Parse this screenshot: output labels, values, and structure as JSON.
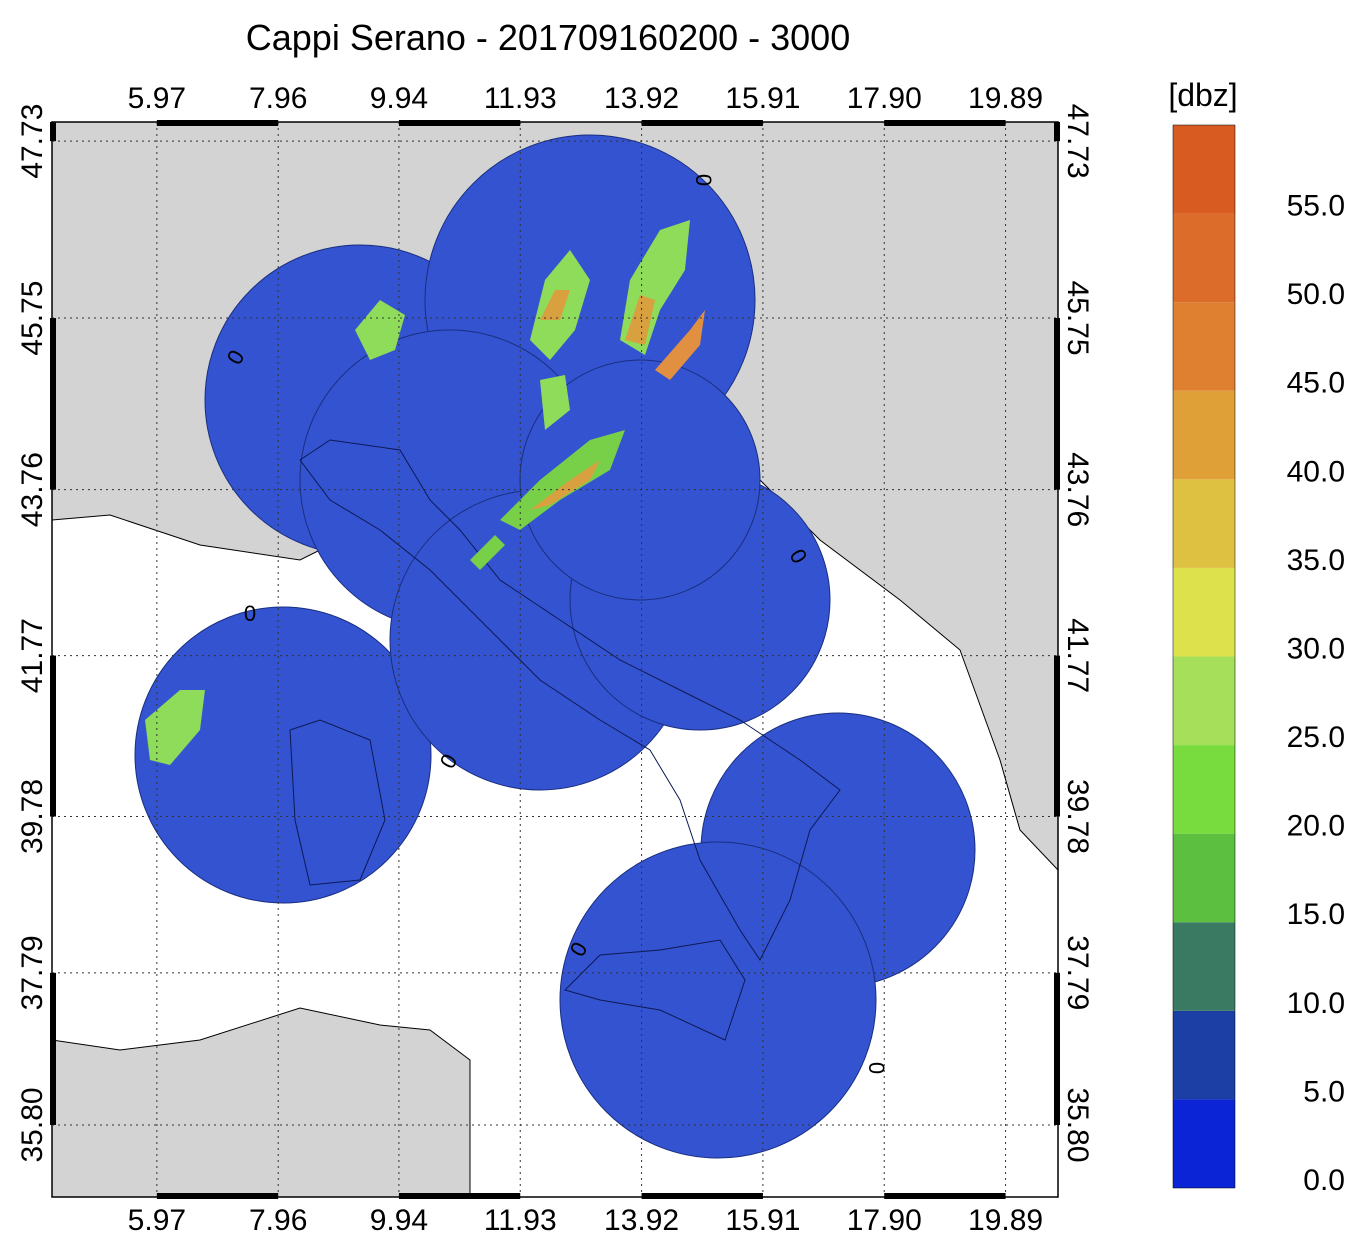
{
  "chart_data": {
    "type": "map",
    "title": "Cappi Serano - 201709160200 - 3000",
    "xlim": [
      4.25,
      20.75
    ],
    "ylim": [
      34.84,
      47.94
    ],
    "xticks": [
      5.97,
      7.96,
      9.94,
      11.93,
      13.92,
      15.91,
      {
        "value": 17.9,
        "label": "17.90"
      },
      19.89
    ],
    "yticks": [
      47.73,
      45.75,
      43.76,
      41.77,
      39.78,
      37.79,
      {
        "value": 35.8,
        "label": "35.80"
      }
    ],
    "grid": true,
    "colorbar": {
      "label": "[dbz]",
      "clim": [
        0,
        60
      ],
      "colors": [
        "#0a24d6",
        "#1c3fa6",
        "#3a7a62",
        "#5cbf40",
        "#78dc3e",
        "#a6df5a",
        "#dde24c",
        "#dfc142",
        "#e0a038",
        "#de8030",
        "#dc6c2a",
        "#d85c22"
      ],
      "ticks": [
        {
          "value": 0,
          "label": "0.0"
        },
        {
          "value": 5,
          "label": "5.0"
        },
        {
          "value": 10,
          "label": "10.0"
        },
        {
          "value": 15,
          "label": "15.0"
        },
        {
          "value": 20,
          "label": "20.0"
        },
        {
          "value": 25,
          "label": "25.0"
        },
        {
          "value": 30,
          "label": "30.0"
        },
        {
          "value": 35,
          "label": "35.0"
        },
        {
          "value": 40,
          "label": "40.0"
        },
        {
          "value": 45,
          "label": "45.0"
        },
        {
          "value": 50,
          "label": "50.0"
        },
        {
          "value": 55,
          "label": "55.0"
        }
      ]
    },
    "contour_labels": [
      0,
      0,
      0,
      0,
      0,
      0,
      0
    ]
  }
}
